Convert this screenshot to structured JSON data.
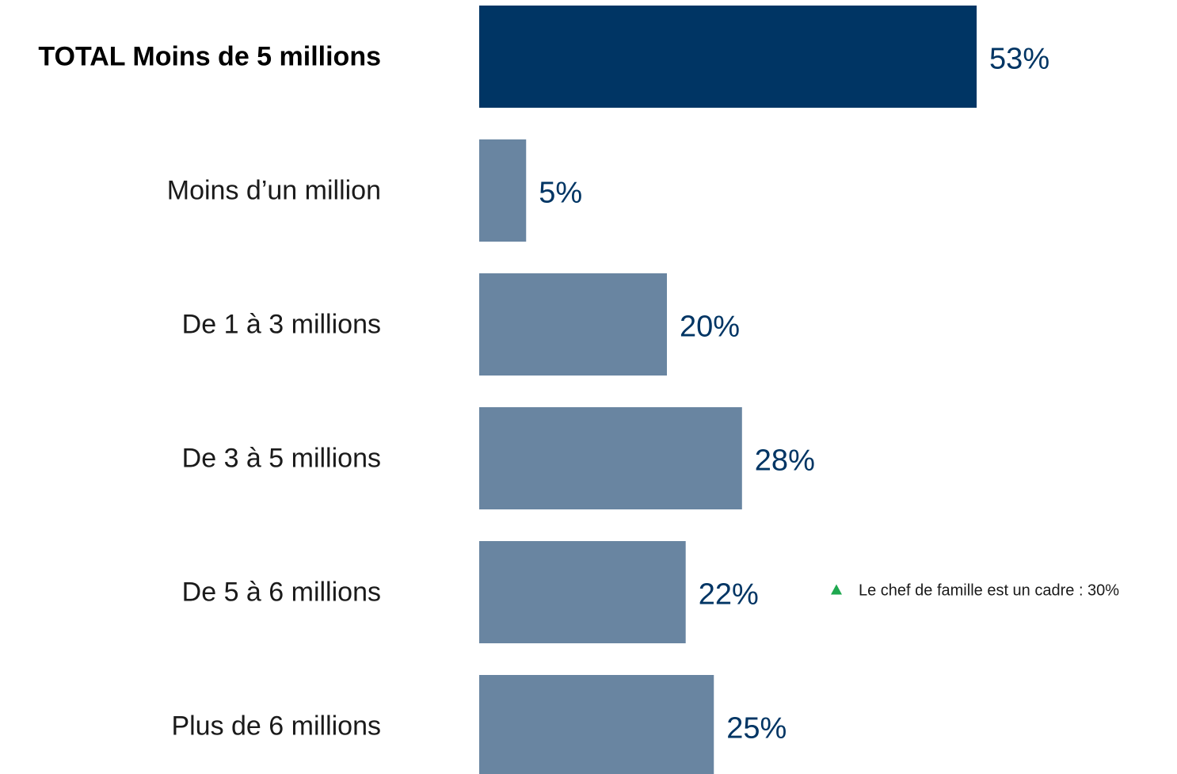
{
  "chart_data": {
    "type": "bar",
    "orientation": "horizontal",
    "categories": [
      "TOTAL Moins de 5 millions",
      "Moins d’un million",
      "De 1 à 3 millions",
      "De 3 à 5 millions",
      "De 5 à 6 millions",
      "Plus de 6 millions"
    ],
    "values": [
      53,
      5,
      20,
      28,
      22,
      25
    ],
    "value_labels": [
      "53%",
      "5%",
      "20%",
      "28%",
      "22%",
      "25%"
    ],
    "highlight_index": 0,
    "xlim": [
      0,
      100
    ],
    "grid": false,
    "legend": "none",
    "annotations": [
      {
        "category_index": 4,
        "marker": "up-triangle-icon",
        "text": "Le chef de famille est un cadre : 30%"
      }
    ],
    "colors": {
      "total_bar": "#003564",
      "bar": "#6985a1",
      "value_text": "#003564",
      "annotation_marker": "#1fa84f"
    }
  }
}
